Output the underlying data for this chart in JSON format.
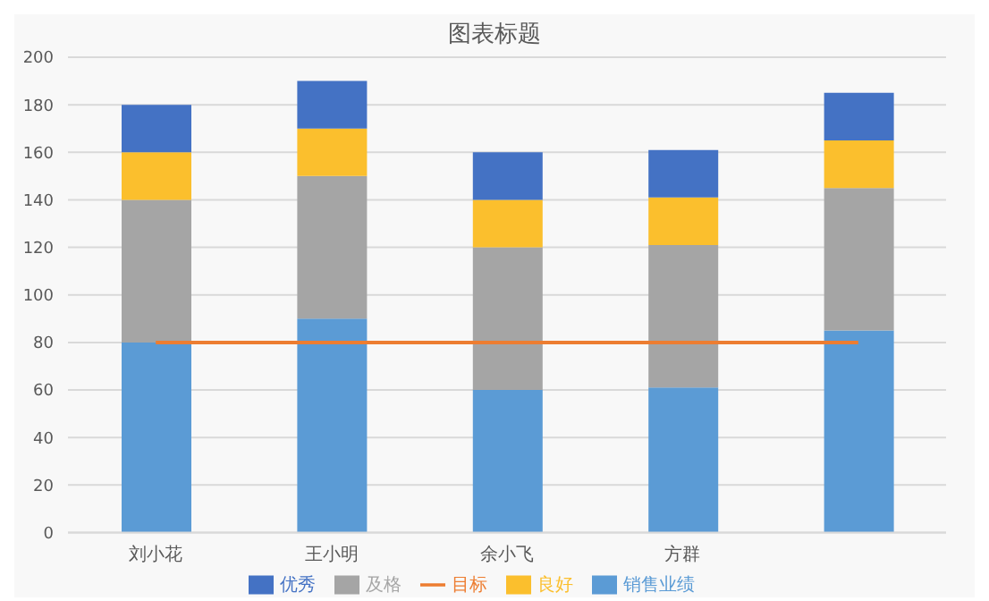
{
  "chart_data": {
    "type": "bar",
    "title": "图表标题",
    "stacked": true,
    "categories": [
      "刘小花",
      "王小明",
      "余小飞",
      "方群",
      null
    ],
    "series": [
      {
        "name": "销售业绩",
        "color": "#5b9bd5",
        "values": [
          80,
          90,
          60,
          61,
          85
        ]
      },
      {
        "name": "及格",
        "color": "#a5a5a5",
        "values": [
          60,
          60,
          60,
          60,
          60
        ]
      },
      {
        "name": "良好",
        "color": "#fbbf2d",
        "values": [
          20,
          20,
          20,
          20,
          20
        ]
      },
      {
        "name": "优秀",
        "color": "#4472c4",
        "values": [
          20,
          20,
          20,
          20,
          20
        ]
      },
      {
        "name": "目标",
        "type": "line",
        "color": "#ed7d31",
        "values": [
          80,
          80,
          80,
          80,
          80
        ]
      }
    ],
    "ylim": [
      0,
      200
    ],
    "yticks": [
      0,
      20,
      40,
      60,
      80,
      100,
      120,
      140,
      160,
      180,
      200
    ],
    "grid": "y",
    "legend": "bottom"
  }
}
